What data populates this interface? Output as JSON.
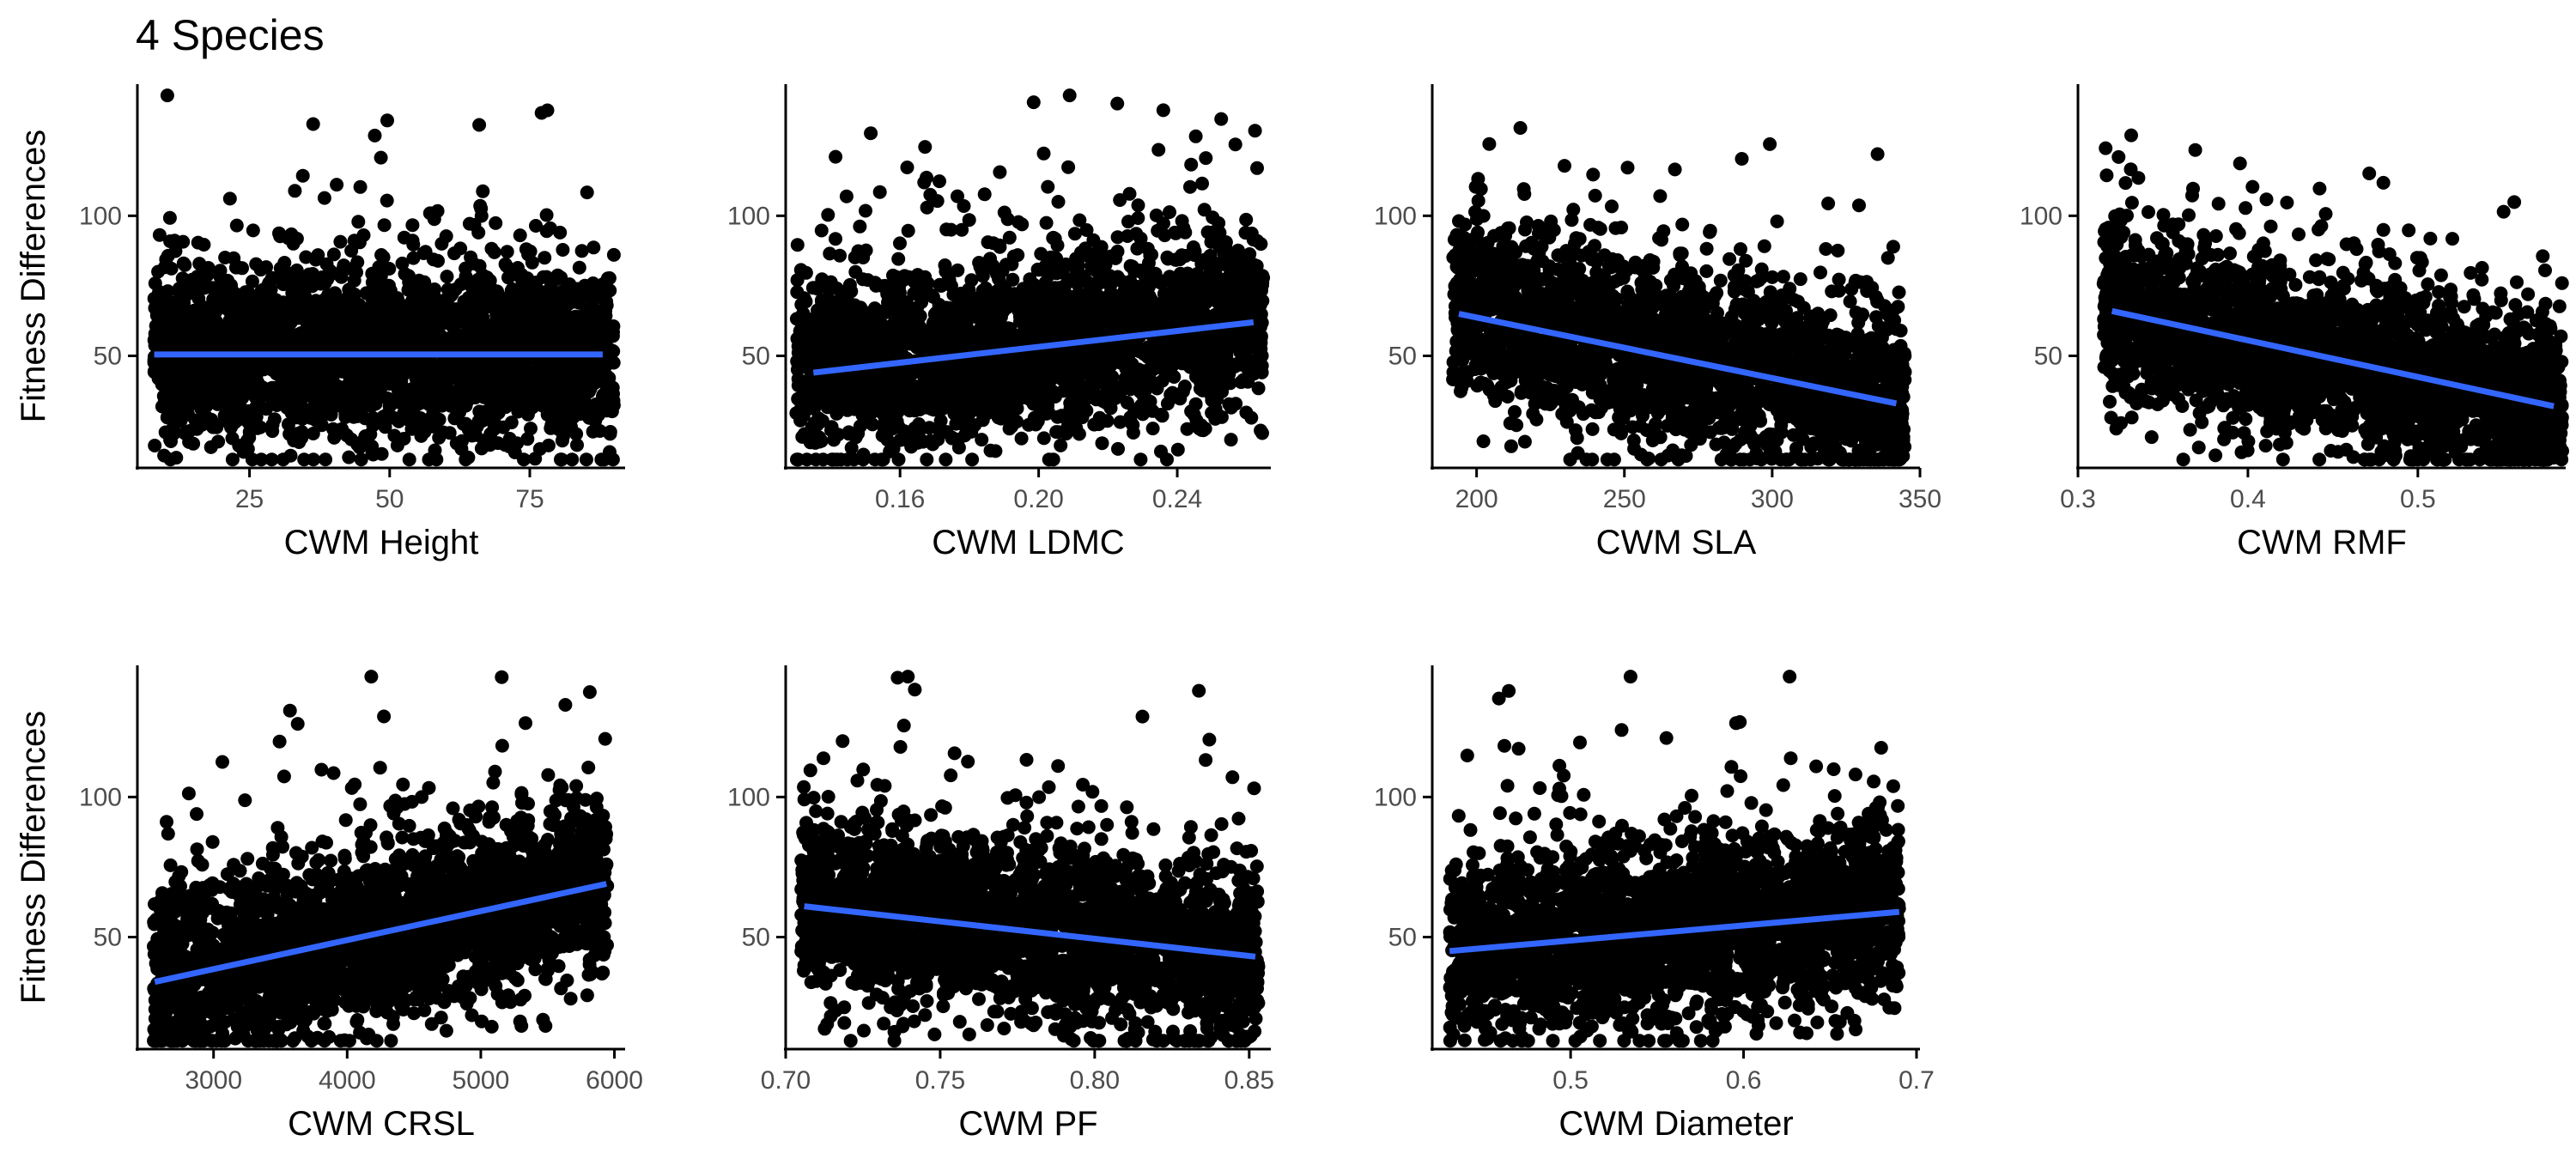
{
  "title": "4 Species",
  "colors": {
    "points": "#000000",
    "fit_line": "#3366FF",
    "axis": "#000000",
    "tick_text": "#4d4d4d"
  },
  "chart_data": [
    {
      "type": "scatter",
      "xlabel": "CWM Height",
      "ylabel": "Fitness Differences",
      "xlim": [
        5,
        92
      ],
      "ylim": [
        10,
        147
      ],
      "xticks": [
        25,
        50,
        75
      ],
      "xtick_labels": [
        "25",
        "50",
        "75"
      ],
      "yticks": [
        50,
        100
      ],
      "ytick_labels": [
        "50",
        "100"
      ],
      "points_spread": {
        "x_range": [
          8,
          90
        ],
        "y_range": [
          13,
          143
        ],
        "y_center": 50,
        "n_points": 2500,
        "trend": "flat"
      },
      "fit": {
        "x": [
          8,
          88
        ],
        "y": [
          50.5,
          50.5
        ]
      }
    },
    {
      "type": "scatter",
      "xlabel": "CWM LDMC",
      "ylabel": "",
      "xlim": [
        0.127,
        0.267
      ],
      "ylim": [
        10,
        147
      ],
      "xticks": [
        0.16,
        0.2,
        0.24
      ],
      "xtick_labels": [
        "0.16",
        "0.20",
        "0.24"
      ],
      "yticks": [
        50,
        100
      ],
      "ytick_labels": [
        "50",
        "100"
      ],
      "points_spread": {
        "x_range": [
          0.13,
          0.265
        ],
        "y_range": [
          13,
          143
        ],
        "y_center": 48,
        "n_points": 2500,
        "trend": "increasing"
      },
      "fit": {
        "x": [
          0.135,
          0.262
        ],
        "y": [
          44,
          62
        ]
      }
    },
    {
      "type": "scatter",
      "xlabel": "CWM SLA",
      "ylabel": "",
      "xlim": [
        185,
        350
      ],
      "ylim": [
        10,
        147
      ],
      "xticks": [
        200,
        250,
        300,
        350
      ],
      "xtick_labels": [
        "200",
        "250",
        "300",
        "350"
      ],
      "yticks": [
        50,
        100
      ],
      "ytick_labels": [
        "50",
        "100"
      ],
      "points_spread": {
        "x_range": [
          192,
          345
        ],
        "y_range": [
          13,
          143
        ],
        "y_center": 55,
        "n_points": 2500,
        "trend": "decreasing"
      },
      "fit": {
        "x": [
          194,
          342
        ],
        "y": [
          65,
          33
        ]
      }
    },
    {
      "type": "scatter",
      "xlabel": "CWM RMF",
      "ylabel": "",
      "xlim": [
        0.3,
        0.587
      ],
      "ylim": [
        10,
        147
      ],
      "xticks": [
        0.3,
        0.4,
        0.5
      ],
      "xtick_labels": [
        "0.3",
        "0.4",
        "0.5"
      ],
      "yticks": [
        50,
        100
      ],
      "ytick_labels": [
        "50",
        "100"
      ],
      "points_spread": {
        "x_range": [
          0.315,
          0.585
        ],
        "y_range": [
          13,
          143
        ],
        "y_center": 50,
        "n_points": 2500,
        "trend": "decreasing"
      },
      "fit": {
        "x": [
          0.32,
          0.58
        ],
        "y": [
          66,
          32
        ]
      }
    },
    {
      "type": "scatter",
      "xlabel": "CWM CRSL",
      "ylabel": "Fitness Differences",
      "xlim": [
        2430,
        6080
      ],
      "ylim": [
        10,
        147
      ],
      "xticks": [
        3000,
        4000,
        5000,
        6000
      ],
      "xtick_labels": [
        "3000",
        "4000",
        "5000",
        "6000"
      ],
      "yticks": [
        50,
        100
      ],
      "ytick_labels": [
        "50",
        "100"
      ],
      "points_spread": {
        "x_range": [
          2550,
          5950
        ],
        "y_range": [
          13,
          143
        ],
        "y_center": 50,
        "n_points": 2500,
        "trend": "increasing"
      },
      "fit": {
        "x": [
          2560,
          5940
        ],
        "y": [
          34,
          69
        ]
      }
    },
    {
      "type": "scatter",
      "xlabel": "CWM PF",
      "ylabel": "",
      "xlim": [
        0.7,
        0.857
      ],
      "ylim": [
        10,
        147
      ],
      "xticks": [
        0.7,
        0.75,
        0.8,
        0.85
      ],
      "xtick_labels": [
        "0.70",
        "0.75",
        "0.80",
        "0.85"
      ],
      "yticks": [
        50,
        100
      ],
      "ytick_labels": [
        "50",
        "100"
      ],
      "points_spread": {
        "x_range": [
          0.705,
          0.853
        ],
        "y_range": [
          13,
          143
        ],
        "y_center": 50,
        "n_points": 2500,
        "trend": "decreasing"
      },
      "fit": {
        "x": [
          0.706,
          0.852
        ],
        "y": [
          61,
          43
        ]
      }
    },
    {
      "type": "scatter",
      "xlabel": "CWM Diameter",
      "ylabel": "",
      "xlim": [
        0.42,
        0.702
      ],
      "ylim": [
        10,
        147
      ],
      "xticks": [
        0.5,
        0.6,
        0.7
      ],
      "xtick_labels": [
        "0.5",
        "0.6",
        "0.7"
      ],
      "yticks": [
        50,
        100
      ],
      "ytick_labels": [
        "50",
        "100"
      ],
      "points_spread": {
        "x_range": [
          0.43,
          0.69
        ],
        "y_range": [
          13,
          143
        ],
        "y_center": 50,
        "n_points": 2500,
        "trend": "increasing"
      },
      "fit": {
        "x": [
          0.43,
          0.69
        ],
        "y": [
          45,
          59
        ]
      }
    }
  ]
}
